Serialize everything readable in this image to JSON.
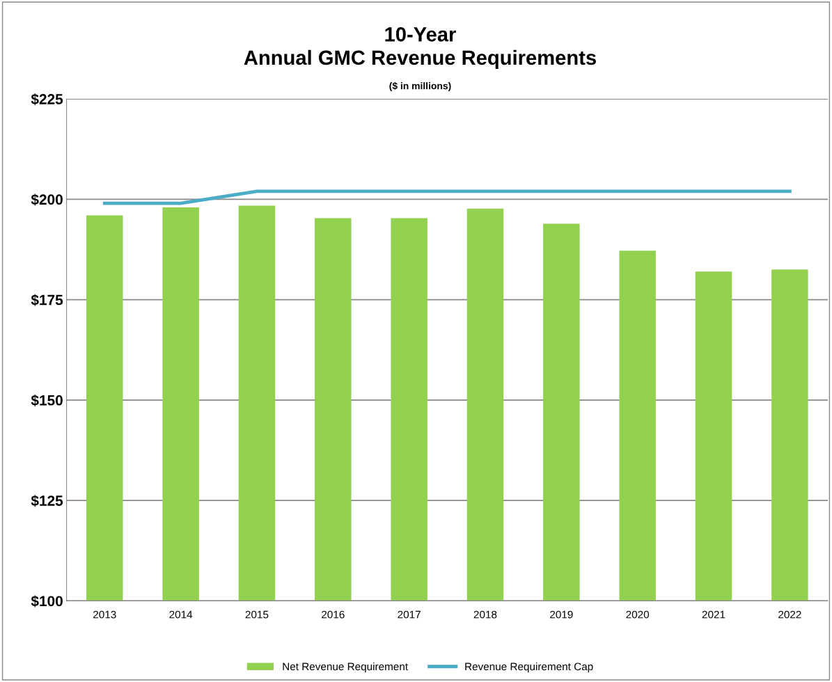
{
  "chart_data": {
    "type": "bar",
    "title": "10-Year\nAnnual GMC Revenue Requirements",
    "subtitle": "($ in millions)",
    "categories": [
      "2013",
      "2014",
      "2015",
      "2016",
      "2017",
      "2018",
      "2019",
      "2020",
      "2021",
      "2022"
    ],
    "series": [
      {
        "name": "Net Revenue Requirement",
        "color": "#92d050",
        "values": [
          196,
          198,
          198.4,
          195.3,
          195.3,
          197.7,
          193.9,
          187.2,
          182,
          182.5
        ]
      },
      {
        "name": "Revenue Requirement Cap",
        "type": "line",
        "color": "#4bacc6",
        "values": [
          199,
          199,
          202,
          202,
          202,
          202,
          202,
          202,
          202,
          202
        ]
      }
    ],
    "ylim": [
      100,
      225
    ],
    "yticks": [
      {
        "value": 100,
        "label": "$100"
      },
      {
        "value": 125,
        "label": "$125"
      },
      {
        "value": 150,
        "label": "$150"
      },
      {
        "value": 175,
        "label": "$175"
      },
      {
        "value": 200,
        "label": "$200"
      },
      {
        "value": 225,
        "label": "$225"
      }
    ],
    "grid": "y",
    "legend": "bottom",
    "marker": "none"
  }
}
